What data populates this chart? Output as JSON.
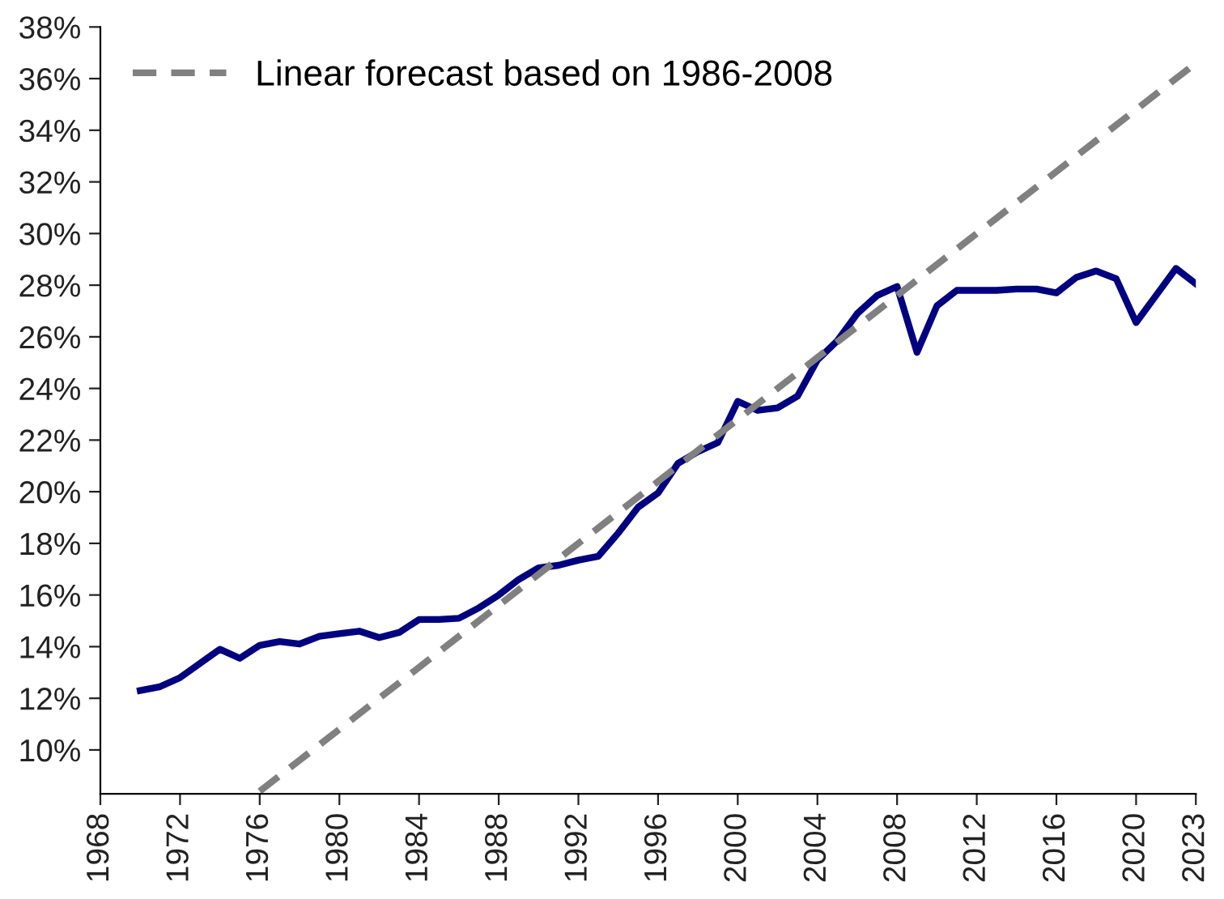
{
  "chart_data": {
    "type": "line",
    "xlim": [
      1968,
      2023
    ],
    "xticks": [
      1968,
      1972,
      1976,
      1980,
      1984,
      1988,
      1992,
      1996,
      2000,
      2004,
      2008,
      2012,
      2016,
      2020,
      2023
    ],
    "ylim": [
      8.3,
      38
    ],
    "yticks": [
      {
        "value": 10,
        "label": "10%"
      },
      {
        "value": 12,
        "label": "12%"
      },
      {
        "value": 14,
        "label": "14%"
      },
      {
        "value": 16,
        "label": "16%"
      },
      {
        "value": 18,
        "label": "18%"
      },
      {
        "value": 20,
        "label": "20%"
      },
      {
        "value": 22,
        "label": "22%"
      },
      {
        "value": 24,
        "label": "24%"
      },
      {
        "value": 26,
        "label": "26%"
      },
      {
        "value": 28,
        "label": "28%"
      },
      {
        "value": 30,
        "label": "30%"
      },
      {
        "value": 32,
        "label": "32%"
      },
      {
        "value": 34,
        "label": "34%"
      },
      {
        "value": 36,
        "label": "36%"
      },
      {
        "value": 38,
        "label": "38%"
      }
    ],
    "grid": false,
    "legend": "top left",
    "series": [
      {
        "color": "#000080",
        "line_style": "solid",
        "x": [
          1970,
          1971,
          1972,
          1973,
          1974,
          1975,
          1976,
          1977,
          1978,
          1979,
          1980,
          1981,
          1982,
          1983,
          1984,
          1985,
          1986,
          1987,
          1988,
          1989,
          1990,
          1991,
          1992,
          1993,
          1994,
          1995,
          1996,
          1997,
          1998,
          1999,
          2000,
          2001,
          2002,
          2003,
          2004,
          2005,
          2006,
          2007,
          2008,
          2009,
          2010,
          2011,
          2012,
          2013,
          2014,
          2015,
          2016,
          2017,
          2018,
          2019,
          2020,
          2021,
          2022,
          2023
        ],
        "values": [
          12.3,
          12.45,
          12.8,
          13.35,
          13.9,
          13.55,
          14.05,
          14.2,
          14.1,
          14.4,
          14.5,
          14.6,
          14.35,
          14.55,
          15.05,
          15.05,
          15.1,
          15.5,
          16.0,
          16.6,
          17.05,
          17.15,
          17.35,
          17.5,
          18.4,
          19.4,
          19.95,
          21.1,
          21.55,
          21.9,
          23.5,
          23.15,
          23.25,
          23.7,
          25.1,
          25.85,
          26.9,
          27.6,
          27.95,
          25.4,
          27.2,
          27.8,
          27.8,
          27.8,
          27.85,
          27.85,
          27.7,
          28.3,
          28.55,
          28.25,
          26.55,
          27.6,
          28.65,
          28.05
        ]
      },
      {
        "name": "Linear forecast based on 1986-2008",
        "color": "#808080",
        "line_style": "dashed",
        "x": [
          1976,
          2023
        ],
        "values": [
          8.4,
          36.6
        ]
      }
    ]
  }
}
